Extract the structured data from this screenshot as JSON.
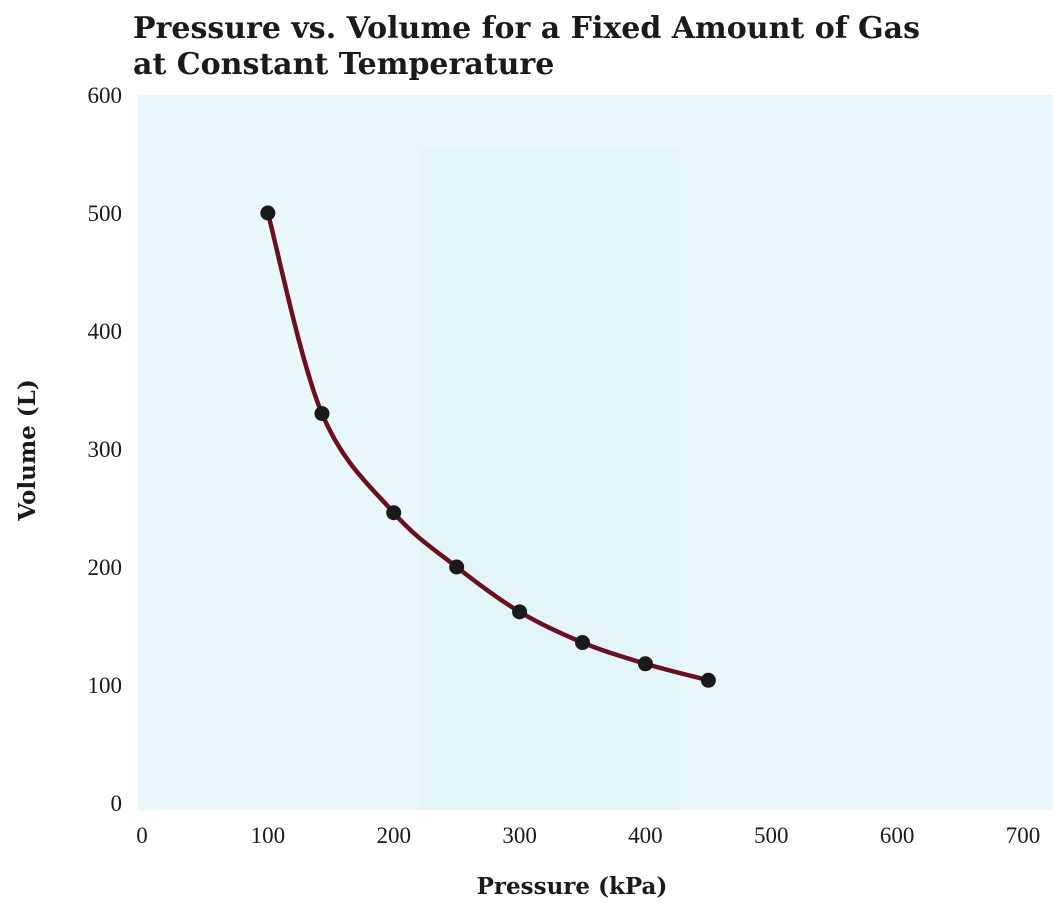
{
  "chart_data": {
    "type": "line",
    "title_lines": [
      "Pressure vs. Volume for a Fixed Amount of Gas",
      "at Constant Temperature"
    ],
    "xlabel": "Pressure (kPa)",
    "ylabel": "Volume (L)",
    "xlim": [
      0,
      700
    ],
    "ylim": [
      0,
      600
    ],
    "x_ticks": [
      "0",
      "100",
      "200",
      "300",
      "400",
      "500",
      "600",
      "700"
    ],
    "y_ticks": [
      "0",
      "100",
      "200",
      "300",
      "400",
      "500",
      "600"
    ],
    "grid": false,
    "legend": "none",
    "series": [
      {
        "x": [
          100,
          143,
          200,
          250,
          300,
          350,
          400,
          450
        ],
        "y": [
          500,
          330,
          246,
          200,
          162,
          136,
          118,
          104
        ]
      }
    ],
    "colors": {
      "curve": "#6b1020",
      "marker": "#1a1a1a",
      "background_tint": "#eaf8fb"
    }
  }
}
